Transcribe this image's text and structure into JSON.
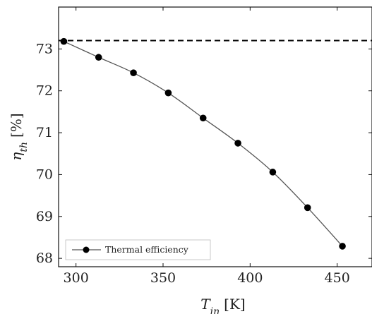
{
  "chart_data": {
    "type": "line",
    "x": [
      293,
      313,
      333,
      353,
      373,
      393,
      413,
      433,
      453
    ],
    "series": [
      {
        "name": "Thermal efficiency",
        "values": [
          73.18,
          72.8,
          72.43,
          71.95,
          71.35,
          70.75,
          70.06,
          69.21,
          68.29
        ],
        "color": "#555555",
        "marker_color": "#000000"
      }
    ],
    "reference_line": {
      "y": 73.2,
      "style": "dashed",
      "color": "#000000"
    },
    "xlim": [
      290,
      470
    ],
    "ylim": [
      67.8,
      74.0
    ],
    "xticks": [
      300,
      350,
      400,
      450
    ],
    "yticks": [
      68,
      69,
      70,
      71,
      72,
      73
    ],
    "xlabel": {
      "main": "T",
      "sub": "in",
      "unit": "[K]"
    },
    "ylabel": {
      "main": "η",
      "sub": "th",
      "unit": "[%]"
    },
    "legend": {
      "placement": "bottom-left"
    },
    "grid": false
  }
}
